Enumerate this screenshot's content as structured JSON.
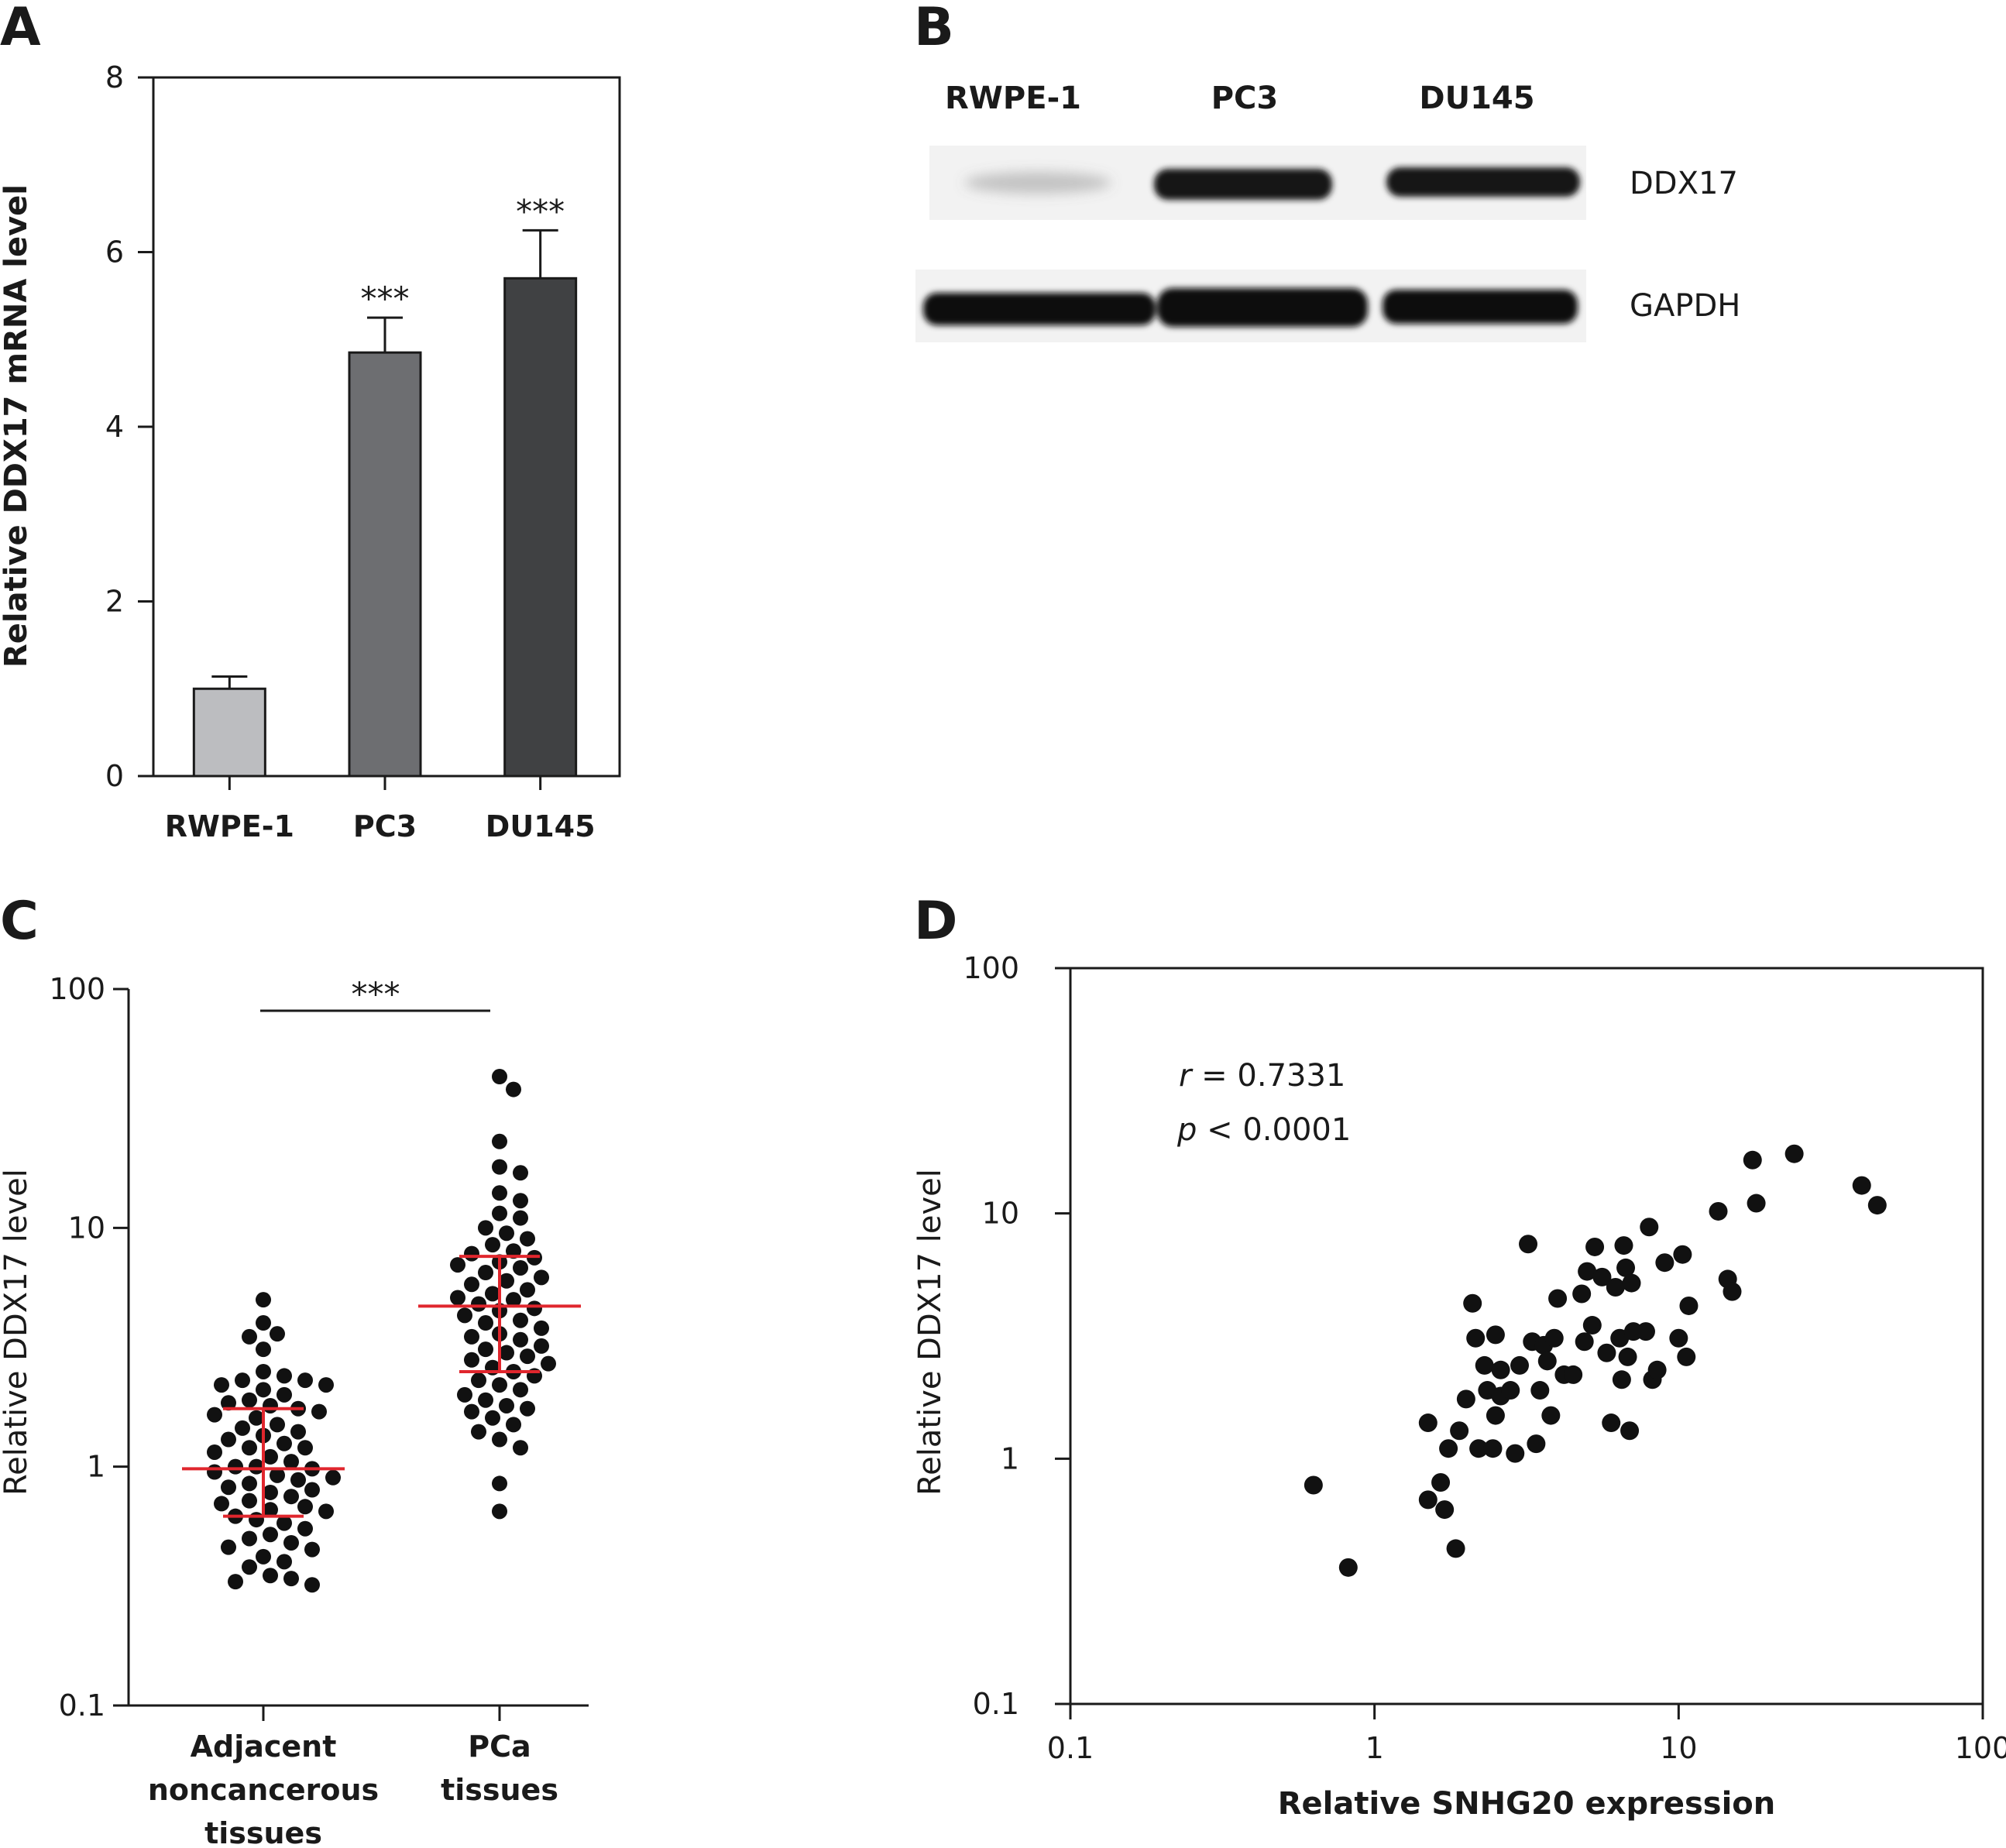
{
  "panels": {
    "A": {
      "letter": "A"
    },
    "B": {
      "letter": "B"
    },
    "C": {
      "letter": "C"
    },
    "D": {
      "letter": "D"
    }
  },
  "blot": {
    "lanes": [
      "RWPE-1",
      "PC3",
      "DU145"
    ],
    "bands": [
      "DDX17",
      "GAPDH"
    ],
    "ddx17_intensity": [
      0.15,
      0.95,
      0.95
    ],
    "gapdh_intensity": [
      1.0,
      1.0,
      1.0
    ]
  },
  "chart_data": [
    {
      "panel": "A",
      "type": "bar",
      "categories": [
        "RWPE-1",
        "PC3",
        "DU145"
      ],
      "values": [
        1.0,
        4.85,
        5.7
      ],
      "errors": [
        0.14,
        0.4,
        0.55
      ],
      "annotations": [
        "",
        "***",
        "***"
      ],
      "colors": [
        "#bcbdc0",
        "#6d6e71",
        "#404143"
      ],
      "ylabel": "Relative DDX17 mRNA level",
      "ylim": [
        0,
        8
      ],
      "yticks": [
        0,
        2,
        4,
        6,
        8
      ]
    },
    {
      "panel": "C",
      "type": "scatter",
      "ylabel": "Relative DDX17 level",
      "ylog": true,
      "ylim": [
        0.1,
        100
      ],
      "yticks": [
        "0.1",
        "1",
        "10",
        "100"
      ],
      "significance": "***",
      "groups": [
        {
          "label": [
            "Adjacent",
            "noncancerous",
            "tissues"
          ],
          "median": 0.98,
          "q1": 0.62,
          "q3": 1.75,
          "values": [
            5.0,
            4.0,
            3.6,
            3.5,
            3.1,
            2.5,
            2.4,
            2.3,
            2.3,
            2.2,
            2.2,
            2.1,
            2.0,
            1.9,
            1.85,
            1.8,
            1.75,
            1.7,
            1.65,
            1.6,
            1.5,
            1.45,
            1.4,
            1.35,
            1.3,
            1.25,
            1.2,
            1.2,
            1.15,
            1.1,
            1.05,
            1.0,
            1.0,
            0.98,
            0.95,
            0.92,
            0.9,
            0.88,
            0.85,
            0.82,
            0.8,
            0.78,
            0.75,
            0.72,
            0.7,
            0.68,
            0.66,
            0.65,
            0.62,
            0.6,
            0.58,
            0.55,
            0.52,
            0.5,
            0.48,
            0.46,
            0.45,
            0.42,
            0.4,
            0.38,
            0.35,
            0.34,
            0.33,
            0.32
          ]
        },
        {
          "label": [
            "PCa",
            "tissues"
          ],
          "median": 4.7,
          "q1": 2.5,
          "q3": 7.6,
          "values": [
            43.0,
            38.0,
            23.0,
            18.0,
            17.0,
            14.0,
            13.0,
            11.5,
            11.0,
            10.0,
            9.5,
            9.0,
            8.5,
            8.0,
            7.8,
            7.5,
            7.2,
            7.0,
            6.8,
            6.5,
            6.2,
            6.0,
            5.8,
            5.5,
            5.3,
            5.1,
            5.0,
            4.8,
            4.6,
            4.5,
            4.3,
            4.1,
            4.0,
            3.8,
            3.6,
            3.5,
            3.4,
            3.2,
            3.1,
            3.0,
            2.9,
            2.8,
            2.7,
            2.6,
            2.5,
            2.4,
            2.3,
            2.2,
            2.1,
            2.0,
            1.9,
            1.8,
            1.75,
            1.7,
            1.6,
            1.5,
            1.4,
            1.3,
            1.2,
            0.85,
            0.65
          ]
        }
      ]
    },
    {
      "panel": "D",
      "type": "scatter",
      "xlabel": "Relative SNHG20 expression",
      "ylabel": "Relative DDX17 level",
      "xlog": true,
      "ylog": true,
      "xlim": [
        0.1,
        100
      ],
      "ylim": [
        0.1,
        100
      ],
      "xticks": [
        "0.1",
        "1",
        "10",
        "100"
      ],
      "yticks": [
        "0.1",
        "1",
        "10",
        "100"
      ],
      "stat_r_symbol": "r",
      "stat_r_value": " = 0.7331",
      "stat_p_symbol": "p",
      "stat_p_value": " < 0.0001",
      "points": [
        [
          0.63,
          0.78
        ],
        [
          0.82,
          0.36
        ],
        [
          1.5,
          1.4
        ],
        [
          1.5,
          0.68
        ],
        [
          1.65,
          0.8
        ],
        [
          1.7,
          0.62
        ],
        [
          1.75,
          1.1
        ],
        [
          1.85,
          0.43
        ],
        [
          1.9,
          1.3
        ],
        [
          2.0,
          1.75
        ],
        [
          2.1,
          4.3
        ],
        [
          2.15,
          3.1
        ],
        [
          2.2,
          1.1
        ],
        [
          2.3,
          2.4
        ],
        [
          2.35,
          1.9
        ],
        [
          2.45,
          1.1
        ],
        [
          2.5,
          1.5
        ],
        [
          2.5,
          3.2
        ],
        [
          2.6,
          2.3
        ],
        [
          2.6,
          1.8
        ],
        [
          2.8,
          1.9
        ],
        [
          2.9,
          1.05
        ],
        [
          3.0,
          2.4
        ],
        [
          3.2,
          7.5
        ],
        [
          3.3,
          3.0
        ],
        [
          3.4,
          1.15
        ],
        [
          3.5,
          1.9
        ],
        [
          3.6,
          2.9
        ],
        [
          3.7,
          2.5
        ],
        [
          3.8,
          1.5
        ],
        [
          3.9,
          3.1
        ],
        [
          4.0,
          4.5
        ],
        [
          4.2,
          2.2
        ],
        [
          4.5,
          2.2
        ],
        [
          4.8,
          4.7
        ],
        [
          4.9,
          3.0
        ],
        [
          5.0,
          5.8
        ],
        [
          5.2,
          3.5
        ],
        [
          5.3,
          7.3
        ],
        [
          5.6,
          5.5
        ],
        [
          5.8,
          2.7
        ],
        [
          6.0,
          1.4
        ],
        [
          6.2,
          5.0
        ],
        [
          6.4,
          3.1
        ],
        [
          6.5,
          2.1
        ],
        [
          6.6,
          7.4
        ],
        [
          6.7,
          6.0
        ],
        [
          6.8,
          2.6
        ],
        [
          6.9,
          1.3
        ],
        [
          7.0,
          5.2
        ],
        [
          7.1,
          3.3
        ],
        [
          7.8,
          3.3
        ],
        [
          8.0,
          8.8
        ],
        [
          8.2,
          2.1
        ],
        [
          8.5,
          2.3
        ],
        [
          9.0,
          6.3
        ],
        [
          10.0,
          3.1
        ],
        [
          10.3,
          6.8
        ],
        [
          10.6,
          2.6
        ],
        [
          10.8,
          4.2
        ],
        [
          13.5,
          10.2
        ],
        [
          14.5,
          5.4
        ],
        [
          15.0,
          4.8
        ],
        [
          17.5,
          16.5
        ],
        [
          18.0,
          11.0
        ],
        [
          24.0,
          17.5
        ],
        [
          40.0,
          13.0
        ],
        [
          45.0,
          10.8
        ]
      ]
    }
  ]
}
